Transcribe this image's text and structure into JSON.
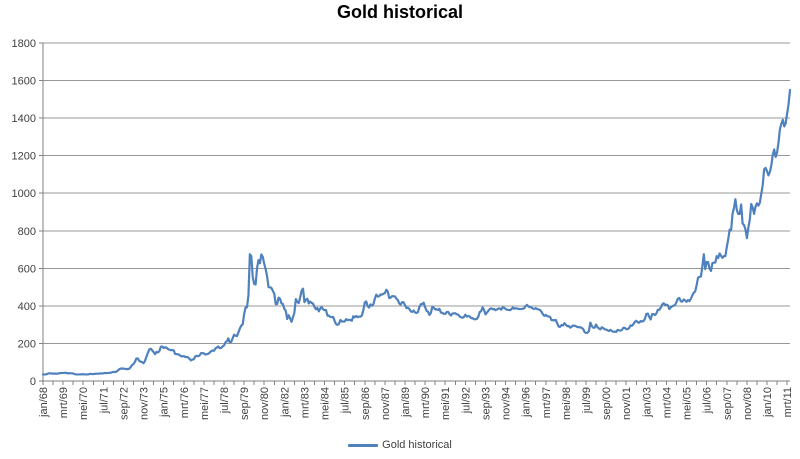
{
  "title": "Gold historical",
  "legend": {
    "label": "Gold historical"
  },
  "colors": {
    "series": "#4F81BD",
    "gridline": "#989898",
    "axis": "#808080",
    "tick": "#808080",
    "text": "#3F3F3F",
    "title": "#000000",
    "background": "#FFFFFF"
  },
  "chart_data": {
    "type": "line",
    "title": "Gold historical",
    "xlabel": "",
    "ylabel": "",
    "ylim": [
      0,
      1800
    ],
    "y_tick_step": 200,
    "grid": true,
    "legend_position": "bottom",
    "x_unit": "month",
    "x_tick_interval_months": 14,
    "x_minor_tick_interval_months": 7,
    "x_tick_labels": [
      "jan/68",
      "mrt/69",
      "mei/70",
      "jul/71",
      "sep/72",
      "nov/73",
      "jan/75",
      "mrt/76",
      "mei/77",
      "jul/78",
      "sep/79",
      "nov/80",
      "jan/82",
      "mrt/83",
      "mei/84",
      "jul/85",
      "sep/86",
      "nov/87",
      "jan/89",
      "mrt/90",
      "mei/91",
      "jul/92",
      "sep/93",
      "nov/94",
      "jan/96",
      "mrt/97",
      "mei/98",
      "jul/99",
      "sep/00",
      "nov/01",
      "jan/03",
      "mrt/04",
      "mei/05",
      "jul/06",
      "sep/07",
      "nov/08",
      "jan/10",
      "mrt/11"
    ],
    "series": [
      {
        "name": "Gold historical",
        "start": "jan/68",
        "values": [
          35,
          35,
          35,
          38,
          41,
          41,
          40,
          39,
          40,
          39,
          39,
          41,
          42,
          43,
          43,
          43,
          44,
          41,
          42,
          41,
          41,
          40,
          37,
          35,
          35,
          35,
          35,
          36,
          36,
          35,
          35,
          35,
          36,
          38,
          37,
          37,
          38,
          39,
          39,
          39,
          41,
          40,
          41,
          43,
          42,
          43,
          43,
          44,
          46,
          48,
          48,
          49,
          55,
          62,
          66,
          67,
          66,
          65,
          63,
          64,
          65,
          74,
          84,
          91,
          102,
          120,
          120,
          107,
          103,
          100,
          95,
          107,
          129,
          150,
          168,
          172,
          163,
          154,
          143,
          155,
          152,
          159,
          182,
          184,
          176,
          179,
          178,
          170,
          167,
          164,
          165,
          163,
          144,
          143,
          142,
          139,
          132,
          131,
          133,
          128,
          127,
          126,
          118,
          110,
          114,
          116,
          131,
          134,
          132,
          136,
          148,
          149,
          147,
          141,
          143,
          145,
          150,
          159,
          162,
          161,
          173,
          178,
          184,
          175,
          176,
          184,
          189,
          206,
          212,
          227,
          206,
          208,
          227,
          246,
          242,
          239,
          258,
          279,
          295,
          301,
          355,
          392,
          392,
          455,
          675,
          665,
          554,
          517,
          514,
          601,
          644,
          627,
          674,
          661,
          624,
          595,
          557,
          500,
          499,
          496,
          480,
          465,
          409,
          410,
          444,
          438,
          413,
          410,
          384,
          374,
          330,
          350,
          334,
          315,
          339,
          364,
          436,
          422,
          415,
          444,
          481,
          492,
          420,
          433,
          438,
          413,
          423,
          416,
          412,
          394,
          382,
          389,
          371,
          386,
          394,
          381,
          377,
          378,
          348,
          348,
          341,
          340,
          341,
          320,
          303,
          299,
          304,
          325,
          317,
          317,
          317,
          329,
          324,
          326,
          325,
          321,
          345,
          339,
          346,
          340,
          343,
          343,
          349,
          377,
          418,
          424,
          399,
          391,
          408,
          401,
          409,
          438,
          460,
          450,
          451,
          461,
          460,
          465,
          468,
          486,
          477,
          442,
          444,
          452,
          451,
          451,
          438,
          431,
          413,
          407,
          420,
          419,
          404,
          388,
          390,
          384,
          371,
          368,
          375,
          365,
          362,
          367,
          394,
          409,
          410,
          417,
          393,
          374,
          369,
          352,
          363,
          395,
          390,
          381,
          382,
          378,
          384,
          364,
          363,
          358,
          357,
          367,
          368,
          356,
          349,
          359,
          360,
          361,
          355,
          354,
          344,
          339,
          337,
          341,
          353,
          343,
          346,
          344,
          335,
          335,
          329,
          329,
          330,
          342,
          367,
          372,
          392,
          379,
          355,
          364,
          374,
          383,
          387,
          382,
          384,
          377,
          381,
          386,
          386,
          380,
          392,
          390,
          384,
          379,
          379,
          377,
          382,
          391,
          385,
          388,
          386,
          384,
          383,
          383,
          385,
          387,
          400,
          405,
          396,
          393,
          392,
          385,
          384,
          388,
          383,
          381,
          378,
          369,
          355,
          347,
          352,
          345,
          344,
          341,
          324,
          324,
          323,
          325,
          306,
          289,
          289,
          298,
          296,
          308,
          299,
          292,
          293,
          284,
          289,
          296,
          294,
          292,
          287,
          287,
          286,
          283,
          277,
          261,
          256,
          257,
          265,
          311,
          293,
          284,
          284,
          301,
          286,
          280,
          275,
          286,
          282,
          275,
          274,
          270,
          266,
          272,
          266,
          262,
          263,
          261,
          272,
          270,
          268,
          272,
          283,
          283,
          276,
          276,
          282,
          296,
          294,
          303,
          315,
          321,
          313,
          310,
          319,
          317,
          319,
          332,
          357,
          359,
          341,
          328,
          356,
          356,
          351,
          360,
          379,
          379,
          390,
          407,
          414,
          405,
          407,
          403,
          383,
          392,
          398,
          401,
          405,
          421,
          439,
          442,
          424,
          423,
          434,
          429,
          422,
          431,
          425,
          438,
          456,
          470,
          477,
          510,
          550,
          555,
          557,
          611,
          675,
          596,
          634,
          633,
          598,
          586,
          628,
          630,
          631,
          665,
          655,
          679,
          667,
          656,
          665,
          665,
          713,
          755,
          806,
          803,
          890,
          922,
          968,
          910,
          889,
          890,
          940,
          839,
          830,
          807,
          761,
          816,
          859,
          943,
          924,
          890,
          929,
          946,
          934,
          949,
          997,
          1043,
          1127,
          1135,
          1118,
          1095,
          1113,
          1149,
          1205,
          1233,
          1193,
          1216,
          1271,
          1342,
          1370,
          1391,
          1356,
          1373,
          1424,
          1474,
          1550
        ]
      }
    ]
  }
}
